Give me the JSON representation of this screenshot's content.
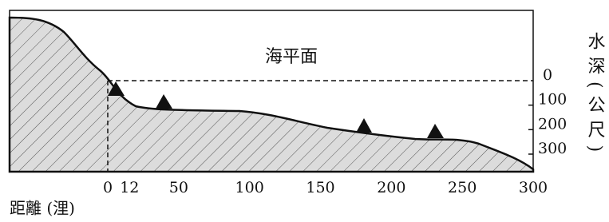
{
  "sea_level_label": "海平面",
  "depth_axis": {
    "title": "水深(公尺)",
    "ticks": [
      0,
      100,
      200,
      300
    ]
  },
  "distance_axis": {
    "title": "距離 (浬)",
    "ticks": [
      0,
      12,
      50,
      100,
      150,
      200,
      250,
      300
    ]
  }
}
